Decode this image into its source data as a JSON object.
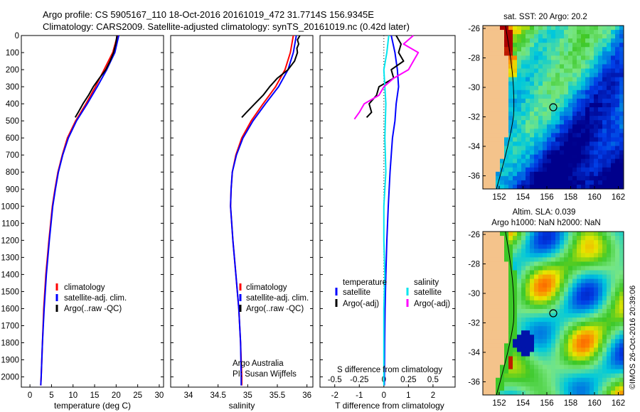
{
  "header": {
    "line1": "Argo profile: CS 5905167_110 18-Oct-2016 20161019_472 31.7714S 156.9345E",
    "line2": "Climatology: CARS2009. Satellite-adjusted climatology: synTS_20161019.nc (0.42d later)"
  },
  "credit": "©IMOS 26-Oct-2016 20:39:06",
  "map_sst": {
    "title": "sat. SST: 20 Argo: 20.2"
  },
  "map_sla": {
    "title1": "Altim. SLA: 0.039",
    "title2": "Argo h1000: NaN h2000: NaN"
  },
  "map_axes": {
    "lat_ticks": [
      "-26",
      "-28",
      "-30",
      "-32",
      "-34",
      "-36"
    ],
    "lon_ticks": [
      "152",
      "154",
      "156",
      "158",
      "160",
      "162"
    ]
  },
  "colors": {
    "climatology": "#ff0000",
    "satellite": "#0000ff",
    "argo": "#000000",
    "sal_satellite": "#00e5ee",
    "sal_argo": "#ff00ff",
    "land": "#f4c38b"
  },
  "chart_data": [
    {
      "type": "line",
      "xlabel": "temperature (deg C)",
      "ylabel": "",
      "xlim": [
        -2,
        31
      ],
      "ylim": [
        2060,
        0
      ],
      "xticks": [
        "0",
        "5",
        "10",
        "15",
        "20",
        "25",
        "30"
      ],
      "yticks": [
        "0",
        "100",
        "200",
        "300",
        "400",
        "500",
        "600",
        "700",
        "800",
        "900",
        "1000",
        "1100",
        "1200",
        "1300",
        "1400",
        "1500",
        "1600",
        "1700",
        "1800",
        "1900",
        "2000"
      ],
      "legend": [
        "climatology",
        "satellite-adj. clim.",
        "Argo(..raw -QC)"
      ],
      "series": [
        {
          "name": "climatology",
          "color": "#ff0000",
          "depth": [
            0,
            100,
            200,
            300,
            400,
            500,
            600,
            700,
            800,
            900,
            1000,
            1200,
            1400,
            1600,
            1800,
            2000,
            2050
          ],
          "values": [
            20.3,
            19.2,
            17.2,
            15.2,
            13.0,
            10.6,
            8.7,
            7.5,
            6.5,
            5.8,
            5.2,
            4.4,
            3.7,
            3.2,
            2.9,
            2.6,
            2.5
          ]
        },
        {
          "name": "satellite-adj. clim.",
          "color": "#0000ff",
          "depth": [
            0,
            100,
            200,
            300,
            400,
            500,
            600,
            700,
            800,
            900,
            1000,
            1200,
            1400,
            1600,
            1800,
            2000,
            2050
          ],
          "values": [
            20.6,
            19.7,
            17.8,
            15.6,
            13.3,
            10.8,
            8.9,
            7.6,
            6.6,
            5.9,
            5.3,
            4.5,
            3.8,
            3.3,
            2.9,
            2.6,
            2.5
          ]
        },
        {
          "name": "Argo(..raw -QC)",
          "color": "#000000",
          "depth": [
            0,
            50,
            100,
            150,
            200,
            250,
            300,
            350,
            400,
            450,
            480
          ],
          "values": [
            20.2,
            19.9,
            19.4,
            18.6,
            17.6,
            16.1,
            14.7,
            13.6,
            12.3,
            11.2,
            10.5
          ]
        }
      ]
    },
    {
      "type": "line",
      "xlabel": "salinity",
      "ylabel": "",
      "xlim": [
        33.7,
        36.1
      ],
      "ylim": [
        2060,
        0
      ],
      "xticks": [
        "34",
        "34.5",
        "35",
        "35.5",
        "36"
      ],
      "legend": [
        "climatology",
        "satellite-adj. clim.",
        "Argo(..raw -QC)"
      ],
      "annotation": [
        "Argo Australia",
        "PI: Susan Wijffels"
      ],
      "series": [
        {
          "name": "climatology",
          "color": "#ff0000",
          "depth": [
            0,
            100,
            200,
            300,
            400,
            500,
            600,
            700,
            800,
            900,
            1000,
            1200,
            1400,
            1600,
            1800,
            2000,
            2050
          ],
          "values": [
            35.77,
            35.72,
            35.63,
            35.47,
            35.26,
            35.06,
            34.9,
            34.8,
            34.74,
            34.72,
            34.71,
            34.75,
            34.8,
            34.85,
            34.88,
            34.9,
            34.9
          ]
        },
        {
          "name": "satellite-adj. clim.",
          "color": "#0000ff",
          "depth": [
            0,
            100,
            200,
            300,
            400,
            500,
            600,
            700,
            800,
            900,
            1000,
            1200,
            1400,
            1600,
            1800,
            2000,
            2050
          ],
          "values": [
            35.82,
            35.77,
            35.68,
            35.52,
            35.3,
            35.09,
            34.92,
            34.81,
            34.74,
            34.72,
            34.71,
            34.75,
            34.8,
            34.85,
            34.88,
            34.89,
            34.89
          ]
        },
        {
          "name": "Argo(..raw -QC)",
          "color": "#000000",
          "depth": [
            0,
            25,
            50,
            75,
            100,
            150,
            200,
            250,
            300,
            350,
            400,
            450,
            480
          ],
          "values": [
            35.88,
            35.84,
            35.86,
            35.83,
            35.84,
            35.79,
            35.68,
            35.5,
            35.37,
            35.26,
            35.12,
            34.98,
            34.9
          ]
        }
      ]
    },
    {
      "type": "line",
      "xlabel": "T difference from climatology",
      "top_label": "S difference from climatology",
      "xlim": [
        -2.6,
        2.9
      ],
      "ylim": [
        2060,
        0
      ],
      "xticks": [
        "-2",
        "-1",
        "0",
        "1",
        "2"
      ],
      "top_ticks": [
        "-0.5",
        "-0.25",
        "0",
        "0.25",
        "0.5"
      ],
      "legend_headers": [
        "temperature",
        "salinity"
      ],
      "legend": [
        "satellite",
        "Argo(-adj)",
        "satellite",
        "Argo(-adj)"
      ],
      "series": [
        {
          "name": "satellite",
          "group": "temperature",
          "color": "#0000ff",
          "depth": [
            0,
            100,
            200,
            300,
            400,
            500,
            600,
            800,
            1000,
            1200,
            1400,
            1600,
            1800,
            2050
          ],
          "values": [
            0.3,
            0.45,
            0.55,
            0.6,
            0.5,
            0.45,
            0.35,
            0.25,
            0.18,
            0.12,
            0.08,
            0.05,
            0.03,
            0.02
          ]
        },
        {
          "name": "Argo(-adj)",
          "group": "temperature",
          "color": "#000000",
          "depth": [
            0,
            50,
            100,
            150,
            200,
            250,
            300,
            350,
            400,
            450,
            480
          ],
          "values": [
            0.5,
            0.7,
            0.6,
            0.8,
            0.3,
            0.4,
            -0.2,
            -0.3,
            -0.6,
            -0.5,
            -0.7
          ]
        },
        {
          "name": "satellite",
          "group": "salinity",
          "color": "#00e5ee",
          "depth": [
            0,
            100,
            200,
            400,
            600,
            800,
            1000,
            1200,
            1400,
            1600,
            1800,
            2050
          ],
          "values": [
            0.05,
            0.03,
            0.0,
            0.02,
            0.01,
            0.02,
            0.0,
            0.0,
            0.01,
            0.0,
            0.0,
            0.0
          ]
        },
        {
          "name": "Argo(-adj)",
          "group": "salinity",
          "color": "#ff00ff",
          "depth": [
            0,
            50,
            100,
            150,
            200,
            250,
            300,
            350,
            400,
            450,
            490
          ],
          "values": [
            0.3,
            0.2,
            0.35,
            0.3,
            0.25,
            0.1,
            0.0,
            -0.05,
            -0.2,
            -0.25,
            -0.3
          ]
        }
      ]
    }
  ]
}
